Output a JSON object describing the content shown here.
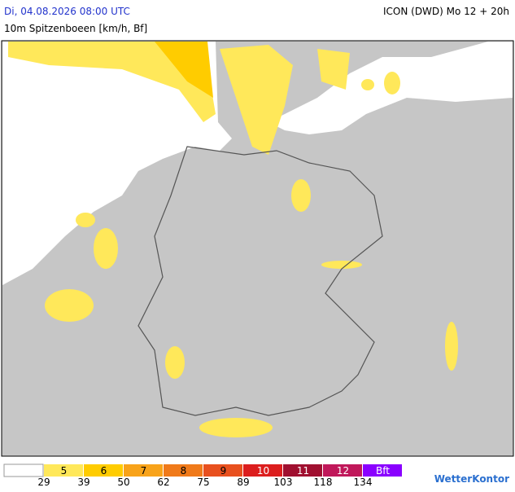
{
  "header": {
    "date": "Di, 04.08.2026 08:00 UTC",
    "model": "ICON (DWD) Mo 12 + 20h",
    "parameter": "10m Spitzenboeen [km/h, Bf]"
  },
  "legend": {
    "first_color": "#ffffff",
    "classes": [
      {
        "label": "5",
        "color": "#ffe85a"
      },
      {
        "label": "6",
        "color": "#ffcc00"
      },
      {
        "label": "7",
        "color": "#f8a31a"
      },
      {
        "label": "8",
        "color": "#f07a1a"
      },
      {
        "label": "9",
        "color": "#e8501e"
      },
      {
        "label": "10",
        "color": "#dc1e1e"
      },
      {
        "label": "11",
        "color": "#a01030"
      },
      {
        "label": "12",
        "color": "#c0185a"
      },
      {
        "label": "Bft",
        "color": "#8a00ff"
      }
    ],
    "thresholds": [
      29,
      39,
      50,
      62,
      75,
      89,
      103,
      118,
      134
    ]
  },
  "logo": "WetterKontor"
}
